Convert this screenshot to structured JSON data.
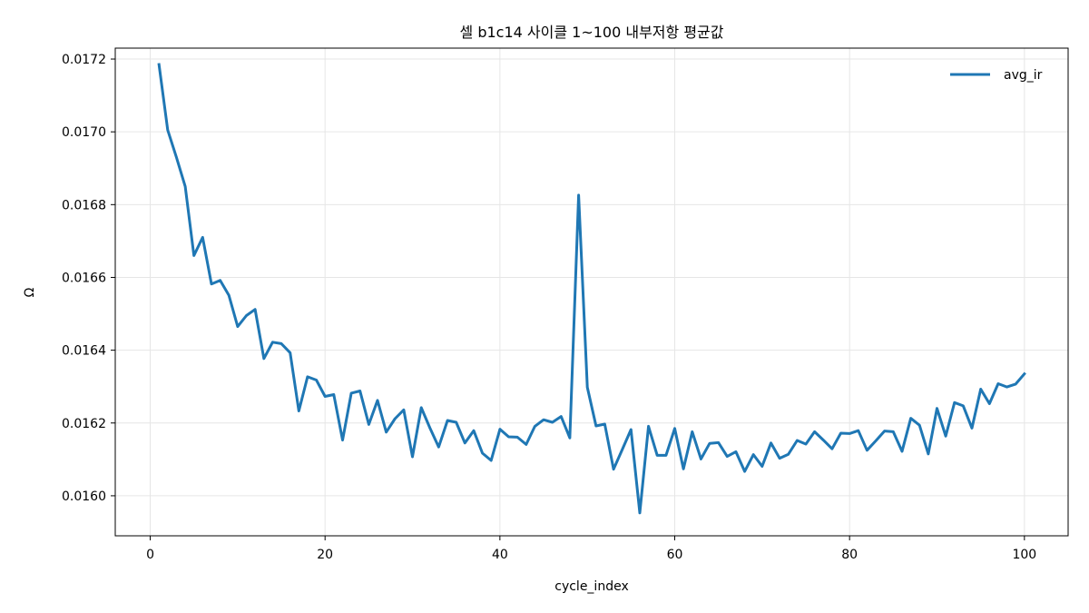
{
  "chart_data": {
    "type": "line",
    "title": "셀 b1c14 사이클 1~100 내부저항 평균값",
    "xlabel": "cycle_index",
    "ylabel": "Ω",
    "xlim": [
      -4,
      105
    ],
    "ylim": [
      0.01589,
      0.01723
    ],
    "xticks": [
      0,
      20,
      40,
      60,
      80,
      100
    ],
    "xtick_labels": [
      "0",
      "20",
      "40",
      "60",
      "80",
      "100"
    ],
    "yticks": [
      0.016,
      0.0162,
      0.0164,
      0.0166,
      0.0168,
      0.017,
      0.0172
    ],
    "ytick_labels": [
      "0.0160",
      "0.0162",
      "0.0164",
      "0.0166",
      "0.0168",
      "0.0170",
      "0.0172"
    ],
    "grid": true,
    "legend_position": "top-right",
    "series": [
      {
        "name": "avg_ir",
        "color": "#1f77b4",
        "x": [
          1,
          2,
          3,
          4,
          5,
          6,
          7,
          8,
          9,
          10,
          11,
          12,
          13,
          14,
          15,
          16,
          17,
          18,
          19,
          20,
          21,
          22,
          23,
          24,
          25,
          26,
          27,
          28,
          29,
          30,
          31,
          32,
          33,
          34,
          35,
          36,
          37,
          38,
          39,
          40,
          41,
          42,
          43,
          44,
          45,
          46,
          47,
          48,
          49,
          50,
          51,
          52,
          53,
          54,
          55,
          56,
          57,
          58,
          59,
          60,
          61,
          62,
          63,
          64,
          65,
          66,
          67,
          68,
          69,
          70,
          71,
          72,
          73,
          74,
          75,
          76,
          77,
          78,
          79,
          80,
          81,
          82,
          83,
          84,
          85,
          86,
          87,
          88,
          89,
          90,
          91,
          92,
          93,
          94,
          95,
          96,
          97,
          98,
          99,
          100
        ],
        "values": [
          0.017185,
          0.017005,
          0.01693,
          0.01685,
          0.01666,
          0.01671,
          0.016582,
          0.016592,
          0.016551,
          0.016465,
          0.016495,
          0.016512,
          0.016377,
          0.016422,
          0.016418,
          0.016393,
          0.016233,
          0.016327,
          0.016318,
          0.016273,
          0.016278,
          0.016153,
          0.016282,
          0.016288,
          0.016196,
          0.016262,
          0.016175,
          0.016212,
          0.016236,
          0.016107,
          0.016242,
          0.016186,
          0.016134,
          0.016207,
          0.016202,
          0.016145,
          0.016179,
          0.016117,
          0.016097,
          0.016183,
          0.016162,
          0.016161,
          0.016141,
          0.016191,
          0.016209,
          0.016202,
          0.016218,
          0.016159,
          0.016826,
          0.016298,
          0.016192,
          0.016197,
          0.016073,
          0.016127,
          0.016182,
          0.015953,
          0.016191,
          0.016111,
          0.016111,
          0.016185,
          0.016074,
          0.016176,
          0.016101,
          0.016144,
          0.016146,
          0.016108,
          0.016121,
          0.016067,
          0.016113,
          0.016081,
          0.016145,
          0.016103,
          0.016114,
          0.016152,
          0.016142,
          0.016176,
          0.016153,
          0.016129,
          0.016172,
          0.016171,
          0.016179,
          0.016125,
          0.016151,
          0.016178,
          0.016176,
          0.016122,
          0.016213,
          0.016194,
          0.016115,
          0.01624,
          0.016164,
          0.016256,
          0.016247,
          0.016186,
          0.016293,
          0.016253,
          0.016308,
          0.016299,
          0.016307,
          0.016335
        ]
      }
    ]
  }
}
